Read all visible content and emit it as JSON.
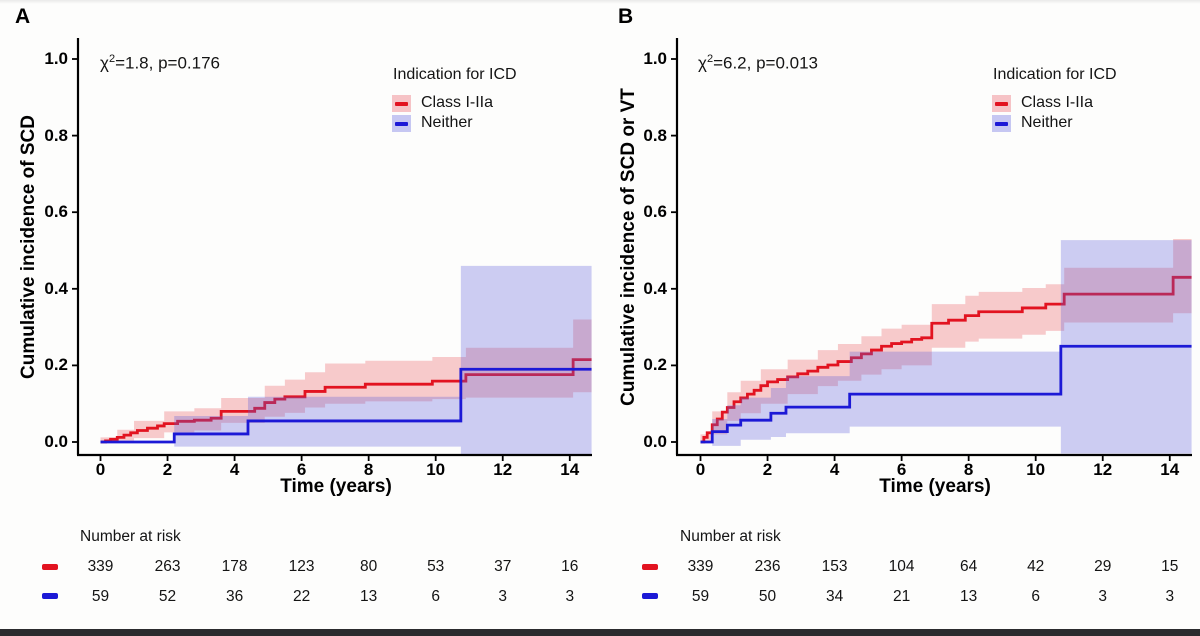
{
  "page": {
    "background": "#fdfdfc",
    "bottom_bar_color": "#2b2b2e",
    "text_color": "#141414",
    "axis_color": "#000000"
  },
  "chart_data": [
    {
      "type": "line",
      "panel_label": "A",
      "ylabel": "Cumulative incidence of SCD",
      "xlabel": "Time (years)",
      "annotation": {
        "text": "χ2=1.8, p=0.176",
        "base": "χ",
        "sup": "2",
        "rest": "=1.8, p=0.176"
      },
      "xlim": [
        0,
        14.65
      ],
      "ylim": [
        0,
        1.0
      ],
      "xticks": [
        "0",
        "2",
        "4",
        "6",
        "8",
        "10",
        "12",
        "14"
      ],
      "yticks": [
        "0.0",
        "0.2",
        "0.4",
        "0.6",
        "0.8",
        "1.0"
      ],
      "grid": false,
      "legend": {
        "title": "Indication for ICD",
        "position": "top-right",
        "entries": [
          {
            "label": "Class I-IIa",
            "line_color": "#e21320",
            "key_fill": "#f6c3c6"
          },
          {
            "label": "Neither",
            "line_color": "#1c19d6",
            "key_fill": "#c6c7f2"
          }
        ]
      },
      "series": [
        {
          "name": "Class I-IIa",
          "line_color": "#e21320",
          "band_color": "rgba(228,40,52,0.24)",
          "step_points": [
            [
              0,
              0
            ],
            [
              0.15,
              0.003
            ],
            [
              0.3,
              0.007
            ],
            [
              0.5,
              0.012
            ],
            [
              0.7,
              0.018
            ],
            [
              0.9,
              0.024
            ],
            [
              1.1,
              0.03
            ],
            [
              1.4,
              0.036
            ],
            [
              1.7,
              0.042
            ],
            [
              1.9,
              0.048
            ],
            [
              2.3,
              0.054
            ],
            [
              2.8,
              0.057
            ],
            [
              3.3,
              0.062
            ],
            [
              3.6,
              0.08
            ],
            [
              4.6,
              0.088
            ],
            [
              4.9,
              0.103
            ],
            [
              5.2,
              0.112
            ],
            [
              5.5,
              0.118
            ],
            [
              6.1,
              0.132
            ],
            [
              6.7,
              0.143
            ],
            [
              7.9,
              0.151
            ],
            [
              9.9,
              0.159
            ],
            [
              10.9,
              0.176
            ],
            [
              14.1,
              0.215
            ]
          ],
          "band_upper": [
            [
              0,
              0.012
            ],
            [
              0.5,
              0.032
            ],
            [
              1,
              0.055
            ],
            [
              1.9,
              0.08
            ],
            [
              2.8,
              0.088
            ],
            [
              3.6,
              0.115
            ],
            [
              4.9,
              0.147
            ],
            [
              5.5,
              0.163
            ],
            [
              6.1,
              0.182
            ],
            [
              6.7,
              0.205
            ],
            [
              7.9,
              0.212
            ],
            [
              9.9,
              0.222
            ],
            [
              10.9,
              0.246
            ],
            [
              14.1,
              0.32
            ]
          ],
          "band_lower": [
            [
              0,
              0
            ],
            [
              0.5,
              0.004
            ],
            [
              1,
              0.01
            ],
            [
              1.9,
              0.025
            ],
            [
              2.8,
              0.03
            ],
            [
              3.6,
              0.05
            ],
            [
              4.9,
              0.066
            ],
            [
              5.5,
              0.076
            ],
            [
              6.1,
              0.09
            ],
            [
              6.7,
              0.1
            ],
            [
              7.9,
              0.106
            ],
            [
              9.9,
              0.112
            ],
            [
              10.9,
              0.116
            ],
            [
              14.1,
              0.13
            ]
          ]
        },
        {
          "name": "Neither",
          "line_color": "#1c19d6",
          "band_color": "rgba(92,92,220,0.30)",
          "step_points": [
            [
              0,
              0
            ],
            [
              2.2,
              0.021
            ],
            [
              4.4,
              0.055
            ],
            [
              10.75,
              0.19
            ]
          ],
          "band_upper": [
            [
              2.2,
              0.068
            ],
            [
              4.4,
              0.118
            ],
            [
              10.75,
              0.46
            ]
          ],
          "band_lower": [
            [
              2.2,
              -0.012
            ],
            [
              4.4,
              -0.012
            ],
            [
              10.75,
              -0.05
            ]
          ]
        }
      ],
      "number_at_risk": {
        "label": "Number at risk",
        "times": [
          0,
          2,
          4,
          6,
          8,
          10,
          12,
          14
        ],
        "rows": [
          {
            "name": "Class I-IIa",
            "color": "#e21320",
            "values": [
              339,
              263,
              178,
              123,
              80,
              53,
              37,
              16
            ]
          },
          {
            "name": "Neither",
            "color": "#1c19d6",
            "values": [
              59,
              52,
              36,
              22,
              13,
              6,
              3,
              3
            ]
          }
        ]
      }
    },
    {
      "type": "line",
      "panel_label": "B",
      "ylabel": "Cumulative incidence of SCD or VT",
      "xlabel": "Time (years)",
      "annotation": {
        "text": "χ2=6.2, p=0.013",
        "base": "χ",
        "sup": "2",
        "rest": "=6.2, p=0.013"
      },
      "xlim": [
        0,
        14.65
      ],
      "ylim": [
        0,
        1.0
      ],
      "xticks": [
        "0",
        "2",
        "4",
        "6",
        "8",
        "10",
        "12",
        "14"
      ],
      "yticks": [
        "0.0",
        "0.2",
        "0.4",
        "0.6",
        "0.8",
        "1.0"
      ],
      "grid": false,
      "legend": {
        "title": "Indication for ICD",
        "position": "top-right",
        "entries": [
          {
            "label": "Class I-IIa",
            "line_color": "#e21320",
            "key_fill": "#f6c3c6"
          },
          {
            "label": "Neither",
            "line_color": "#1c19d6",
            "key_fill": "#c6c7f2"
          }
        ]
      },
      "series": [
        {
          "name": "Class I-IIa",
          "line_color": "#e21320",
          "band_color": "rgba(228,40,52,0.24)",
          "step_points": [
            [
              0,
              0
            ],
            [
              0.1,
              0.012
            ],
            [
              0.2,
              0.024
            ],
            [
              0.35,
              0.045
            ],
            [
              0.5,
              0.06
            ],
            [
              0.65,
              0.078
            ],
            [
              0.8,
              0.09
            ],
            [
              1.0,
              0.105
            ],
            [
              1.2,
              0.115
            ],
            [
              1.4,
              0.125
            ],
            [
              1.6,
              0.135
            ],
            [
              1.8,
              0.147
            ],
            [
              2.0,
              0.157
            ],
            [
              2.3,
              0.163
            ],
            [
              2.6,
              0.17
            ],
            [
              2.9,
              0.178
            ],
            [
              3.2,
              0.185
            ],
            [
              3.5,
              0.195
            ],
            [
              3.8,
              0.201
            ],
            [
              4.1,
              0.21
            ],
            [
              4.5,
              0.22
            ],
            [
              4.8,
              0.23
            ],
            [
              5.1,
              0.24
            ],
            [
              5.4,
              0.25
            ],
            [
              5.7,
              0.257
            ],
            [
              6.0,
              0.261
            ],
            [
              6.3,
              0.268
            ],
            [
              6.6,
              0.272
            ],
            [
              6.9,
              0.31
            ],
            [
              7.4,
              0.318
            ],
            [
              7.9,
              0.33
            ],
            [
              8.3,
              0.34
            ],
            [
              9.6,
              0.35
            ],
            [
              10.3,
              0.36
            ],
            [
              10.85,
              0.386
            ],
            [
              14.1,
              0.43
            ]
          ],
          "band_upper": [
            [
              0,
              0.02
            ],
            [
              0.35,
              0.08
            ],
            [
              0.8,
              0.13
            ],
            [
              1.2,
              0.16
            ],
            [
              1.8,
              0.19
            ],
            [
              2.6,
              0.215
            ],
            [
              3.5,
              0.24
            ],
            [
              4.1,
              0.256
            ],
            [
              4.8,
              0.276
            ],
            [
              5.4,
              0.296
            ],
            [
              6.0,
              0.306
            ],
            [
              6.9,
              0.36
            ],
            [
              7.9,
              0.382
            ],
            [
              8.3,
              0.392
            ],
            [
              9.6,
              0.402
            ],
            [
              10.3,
              0.412
            ],
            [
              10.85,
              0.455
            ],
            [
              14.1,
              0.53
            ]
          ],
          "band_lower": [
            [
              0,
              0
            ],
            [
              0.35,
              0.02
            ],
            [
              0.8,
              0.055
            ],
            [
              1.2,
              0.075
            ],
            [
              1.8,
              0.1
            ],
            [
              2.6,
              0.125
            ],
            [
              3.5,
              0.146
            ],
            [
              4.1,
              0.16
            ],
            [
              4.8,
              0.176
            ],
            [
              5.4,
              0.19
            ],
            [
              6.0,
              0.2
            ],
            [
              6.9,
              0.246
            ],
            [
              7.9,
              0.262
            ],
            [
              8.3,
              0.27
            ],
            [
              9.6,
              0.28
            ],
            [
              10.3,
              0.29
            ],
            [
              10.85,
              0.312
            ],
            [
              14.1,
              0.336
            ]
          ]
        },
        {
          "name": "Neither",
          "line_color": "#1c19d6",
          "band_color": "rgba(92,92,220,0.30)",
          "step_points": [
            [
              0,
              0
            ],
            [
              0.35,
              0.027
            ],
            [
              0.8,
              0.044
            ],
            [
              1.2,
              0.057
            ],
            [
              2.1,
              0.075
            ],
            [
              2.55,
              0.091
            ],
            [
              4.45,
              0.125
            ],
            [
              10.75,
              0.25
            ]
          ],
          "band_upper": [
            [
              0.35,
              0.06
            ],
            [
              0.8,
              0.096
            ],
            [
              1.2,
              0.116
            ],
            [
              2.1,
              0.141
            ],
            [
              2.55,
              0.172
            ],
            [
              4.45,
              0.236
            ],
            [
              10.75,
              0.527
            ]
          ],
          "band_lower": [
            [
              0.35,
              -0.01
            ],
            [
              0.8,
              -0.01
            ],
            [
              1.2,
              0.006
            ],
            [
              2.1,
              0.013
            ],
            [
              2.55,
              0.023
            ],
            [
              4.45,
              0.04
            ],
            [
              10.75,
              -0.03
            ]
          ]
        }
      ],
      "number_at_risk": {
        "label": "Number at risk",
        "times": [
          0,
          2,
          4,
          6,
          8,
          10,
          12,
          14
        ],
        "rows": [
          {
            "name": "Class I-IIa",
            "color": "#e21320",
            "values": [
              339,
              236,
              153,
              104,
              64,
              42,
              29,
              15
            ]
          },
          {
            "name": "Neither",
            "color": "#1c19d6",
            "values": [
              59,
              50,
              34,
              21,
              13,
              6,
              3,
              3
            ]
          }
        ]
      }
    }
  ]
}
